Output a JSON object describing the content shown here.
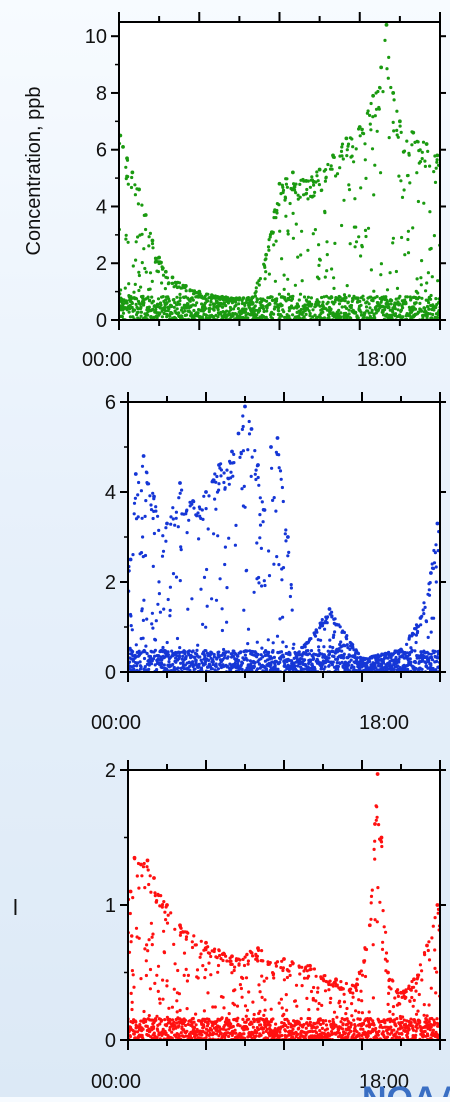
{
  "chart_data": [
    {
      "type": "scatter",
      "title": "",
      "xlabel": "",
      "ylabel": "Concentration, ppb",
      "ylim": [
        0,
        10.5
      ],
      "yticks": [
        0,
        2,
        4,
        6,
        8,
        10
      ],
      "xtick_labels": [
        "00:00",
        "18:00"
      ],
      "x_range_hours": [
        0,
        24
      ],
      "grid": false,
      "color": "#1a9a10",
      "series": [
        {
          "points": [
            {
              "x": 0.1,
              "y": 6.5
            },
            {
              "x": 0.3,
              "y": 6.1
            },
            {
              "x": 0.6,
              "y": 5.7
            },
            {
              "x": 1.0,
              "y": 5.2
            },
            {
              "x": 1.5,
              "y": 4.6
            },
            {
              "x": 2.0,
              "y": 3.7
            },
            {
              "x": 2.5,
              "y": 2.8
            },
            {
              "x": 3.0,
              "y": 2.2
            },
            {
              "x": 3.5,
              "y": 1.7
            },
            {
              "x": 4.0,
              "y": 1.5
            },
            {
              "x": 5.0,
              "y": 1.2
            },
            {
              "x": 6.0,
              "y": 1.0
            },
            {
              "x": 8.0,
              "y": 0.8
            },
            {
              "x": 10.0,
              "y": 0.8
            },
            {
              "x": 11.0,
              "y": 2.3
            },
            {
              "x": 12.0,
              "y": 4.8
            },
            {
              "x": 13.0,
              "y": 5.2
            },
            {
              "x": 14.0,
              "y": 4.9
            },
            {
              "x": 15.0,
              "y": 5.3
            },
            {
              "x": 16.0,
              "y": 5.8
            },
            {
              "x": 17.0,
              "y": 6.4
            },
            {
              "x": 18.0,
              "y": 6.8
            },
            {
              "x": 19.0,
              "y": 7.9
            },
            {
              "x": 19.6,
              "y": 8.9
            },
            {
              "x": 20.0,
              "y": 10.4
            },
            {
              "x": 20.5,
              "y": 8.0
            },
            {
              "x": 21.0,
              "y": 7.0
            },
            {
              "x": 22.0,
              "y": 6.6
            },
            {
              "x": 23.0,
              "y": 6.2
            },
            {
              "x": 23.8,
              "y": 5.8
            }
          ]
        }
      ]
    },
    {
      "type": "scatter",
      "title": "",
      "xlabel": "",
      "ylabel": "",
      "ylim": [
        0,
        6
      ],
      "yticks": [
        0,
        2,
        4,
        6
      ],
      "xtick_labels": [
        "00:00",
        "18:00"
      ],
      "x_range_hours": [
        0,
        24
      ],
      "grid": false,
      "color": "#1536d6",
      "series": [
        {
          "points": [
            {
              "x": 0.2,
              "y": 2.5
            },
            {
              "x": 0.6,
              "y": 4.4
            },
            {
              "x": 1.2,
              "y": 4.8
            },
            {
              "x": 2.0,
              "y": 3.9
            },
            {
              "x": 3.0,
              "y": 3.3
            },
            {
              "x": 4.0,
              "y": 4.2
            },
            {
              "x": 5.0,
              "y": 3.8
            },
            {
              "x": 6.0,
              "y": 4.0
            },
            {
              "x": 7.0,
              "y": 4.6
            },
            {
              "x": 8.0,
              "y": 4.9
            },
            {
              "x": 8.5,
              "y": 5.3
            },
            {
              "x": 9.0,
              "y": 5.9
            },
            {
              "x": 9.5,
              "y": 5.4
            },
            {
              "x": 10.0,
              "y": 4.6
            },
            {
              "x": 10.5,
              "y": 3.6
            },
            {
              "x": 11.0,
              "y": 5.0
            },
            {
              "x": 11.5,
              "y": 5.2
            },
            {
              "x": 12.3,
              "y": 3.0
            },
            {
              "x": 13.0,
              "y": 0.4
            },
            {
              "x": 15.5,
              "y": 1.4
            },
            {
              "x": 18.0,
              "y": 0.3
            },
            {
              "x": 21.0,
              "y": 0.5
            },
            {
              "x": 22.5,
              "y": 1.2
            },
            {
              "x": 23.3,
              "y": 2.2
            },
            {
              "x": 23.8,
              "y": 3.3
            }
          ]
        }
      ]
    },
    {
      "type": "scatter",
      "title": "",
      "xlabel": "",
      "ylabel": "",
      "ylim": [
        0,
        2
      ],
      "yticks": [
        0,
        1,
        2
      ],
      "xtick_labels": [
        "00:00",
        "18:00"
      ],
      "x_range_hours": [
        0,
        24
      ],
      "grid": false,
      "color": "#ff1010",
      "series": [
        {
          "points": [
            {
              "x": 0.2,
              "y": 1.1
            },
            {
              "x": 0.5,
              "y": 1.35
            },
            {
              "x": 1.0,
              "y": 1.3
            },
            {
              "x": 1.5,
              "y": 1.33
            },
            {
              "x": 2.0,
              "y": 1.2
            },
            {
              "x": 3.0,
              "y": 1.0
            },
            {
              "x": 4.0,
              "y": 0.85
            },
            {
              "x": 6.0,
              "y": 0.72
            },
            {
              "x": 8.0,
              "y": 0.62
            },
            {
              "x": 10.0,
              "y": 0.68
            },
            {
              "x": 12.0,
              "y": 0.6
            },
            {
              "x": 14.0,
              "y": 0.55
            },
            {
              "x": 16.0,
              "y": 0.45
            },
            {
              "x": 17.5,
              "y": 0.4
            },
            {
              "x": 18.6,
              "y": 0.85
            },
            {
              "x": 19.0,
              "y": 1.6
            },
            {
              "x": 19.2,
              "y": 1.97
            },
            {
              "x": 19.5,
              "y": 1.5
            },
            {
              "x": 20.0,
              "y": 0.5
            },
            {
              "x": 21.0,
              "y": 0.35
            },
            {
              "x": 22.0,
              "y": 0.45
            },
            {
              "x": 23.0,
              "y": 0.7
            },
            {
              "x": 23.8,
              "y": 1.0
            }
          ]
        }
      ]
    }
  ],
  "side_text": "l",
  "logo_text": "NOAA",
  "logo_color": "#3a6fc4"
}
